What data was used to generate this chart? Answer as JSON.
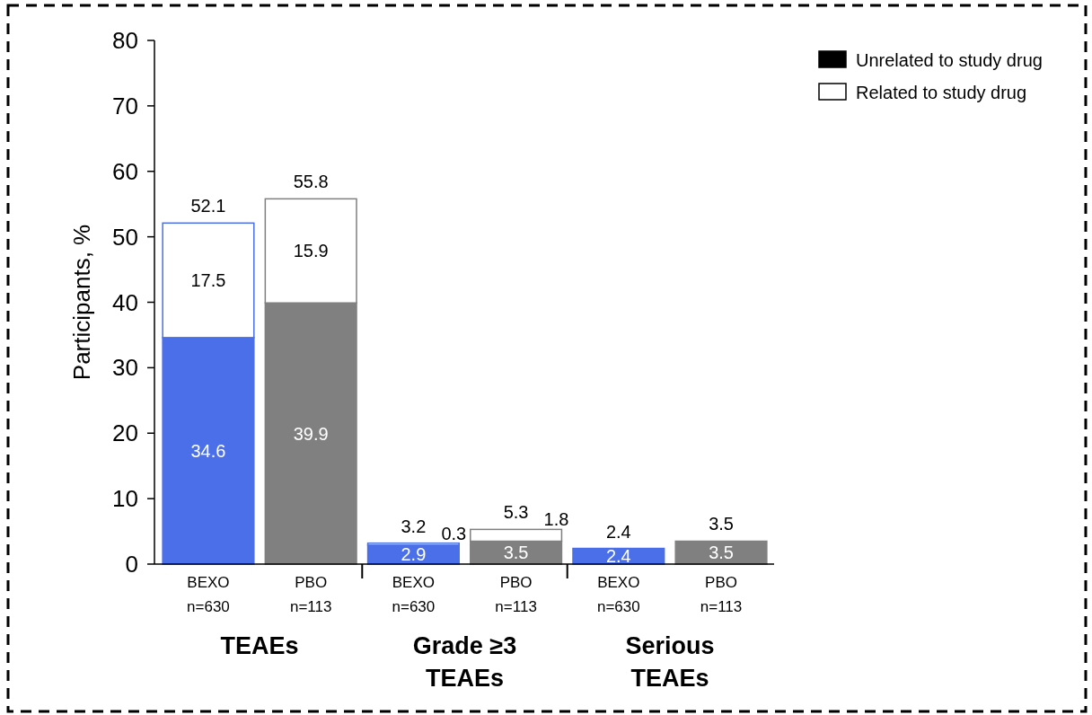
{
  "chart_data": {
    "type": "bar",
    "stacked": true,
    "ylabel": "Participants, %",
    "categories": [
      "BEXO\nn=630",
      "PBO\nn=113",
      "BEXO\nn=630",
      "PBO\nn=113",
      "BEXO\nn=630",
      "PBO\nn=113"
    ],
    "series": [
      {
        "name": "Unrelated to study drug",
        "color": "#000000",
        "colors": [
          "#4a6fe8",
          "#808080",
          "#4a6fe8",
          "#808080",
          "#4a6fe8",
          "#808080"
        ],
        "values": [
          34.6,
          39.9,
          2.9,
          3.5,
          2.4,
          3.5
        ],
        "value_labels": [
          "34.6",
          "39.9",
          "2.9",
          "3.5",
          "2.4",
          "3.5"
        ]
      },
      {
        "name": "Related to study drug",
        "color": "#ffffff",
        "colors": [
          "#ffffff",
          "#ffffff",
          "#ffffff",
          "#ffffff",
          "#ffffff",
          "#ffffff"
        ],
        "values": [
          17.5,
          15.9,
          0.3,
          1.8,
          0,
          0
        ],
        "value_labels": [
          "17.5",
          "15.9",
          "0.3",
          "1.8",
          null,
          null
        ]
      }
    ],
    "totals": [
      "52.1",
      "55.8",
      "3.2",
      "5.3",
      "2.4",
      "3.5"
    ],
    "annotations": [
      "TEAEs",
      "Grade ≥3 TEAEs",
      "Serious TEAEs"
    ],
    "ylim": [
      0,
      80
    ],
    "yticks": [
      0,
      10,
      20,
      30,
      40,
      50,
      60,
      70,
      80
    ],
    "legend": "top right",
    "grid": false
  }
}
